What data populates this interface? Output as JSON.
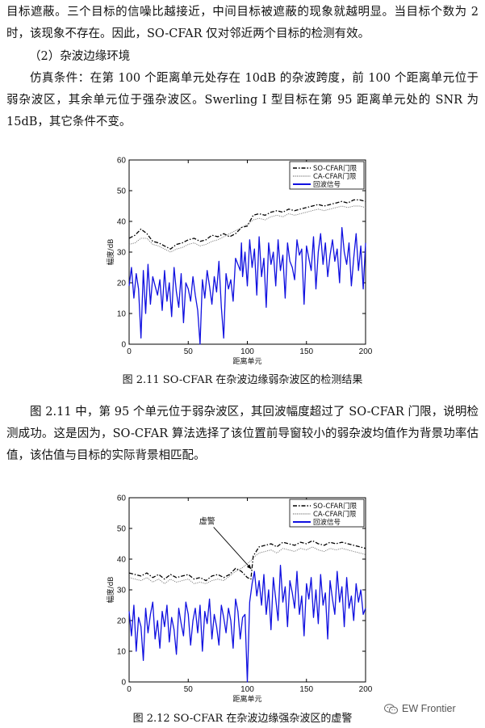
{
  "text": {
    "p1": "目标遮蔽。三个目标的信噪比越接近，中间目标被遮蔽的现象就越明显。当目标个数为 2 时，该现象不存在。因此，SO-CFAR 仅对邻近两个目标的检测有效。",
    "h2": "（2）杂波边缘环境",
    "p2": "仿真条件：在第 100 个距离单元处存在 10dB 的杂波跨度，前 100 个距离单元位于弱杂波区，其余单元位于强杂波区。Swerling I 型目标在第 95 距离单元处的 SNR 为 15dB，其它条件不变。",
    "caption1": "图 2.11 SO-CFAR 在杂波边缘弱杂波区的检测结果",
    "p3": "图 2.11 中，第 95 个单元位于弱杂波区，其回波幅度超过了 SO-CFAR 门限，说明检测成功。这是因为，SO-CFAR 算法选择了该位置前导窗较小的弱杂波均值作为背景功率估值，该估值与目标的实际背景相匹配。",
    "caption2": "图 2.12 SO-CFAR 在杂波边缘强杂波区的虚警",
    "watermark": "EW Frontier",
    "wm_icon": "wechat-icon"
  },
  "chart_data": [
    {
      "type": "line",
      "xlabel": "距离单元",
      "ylabel": "幅度/dB",
      "xlim": [
        0,
        200
      ],
      "ylim": [
        0,
        60
      ],
      "xticks": [
        "0",
        "50",
        "100",
        "150",
        "200"
      ],
      "yticks": [
        "0",
        "10",
        "20",
        "30",
        "40",
        "50",
        "60"
      ],
      "legend_position": "top-right",
      "annotation": "",
      "series": [
        {
          "name": "SO-CFAR门限",
          "color": "#000000",
          "style": "dashdot",
          "x": [
            0,
            5,
            10,
            15,
            20,
            25,
            30,
            35,
            40,
            45,
            50,
            55,
            60,
            65,
            70,
            75,
            80,
            85,
            90,
            95,
            100,
            105,
            110,
            115,
            120,
            125,
            130,
            135,
            140,
            145,
            150,
            155,
            160,
            165,
            170,
            175,
            180,
            185,
            190,
            195,
            200
          ],
          "y": [
            34.5,
            35.5,
            37.5,
            36,
            33.5,
            33,
            32,
            31,
            32.5,
            33,
            34,
            34.5,
            33.5,
            34,
            35.5,
            35,
            36,
            35,
            36,
            38,
            38.5,
            42,
            42.5,
            42,
            43,
            43.5,
            43,
            44,
            43.5,
            44,
            44.5,
            45,
            45.5,
            45,
            45.5,
            46,
            46.5,
            46,
            47,
            47,
            46.5
          ]
        },
        {
          "name": "CA-CFAR门限",
          "color": "#777777",
          "style": "dotted",
          "x": [
            0,
            5,
            10,
            15,
            20,
            25,
            30,
            35,
            40,
            45,
            50,
            55,
            60,
            65,
            70,
            75,
            80,
            85,
            90,
            95,
            100,
            105,
            110,
            115,
            120,
            125,
            130,
            135,
            140,
            145,
            150,
            155,
            160,
            165,
            170,
            175,
            180,
            185,
            190,
            195,
            200
          ],
          "y": [
            32.5,
            33,
            34.5,
            34.5,
            32.5,
            32,
            31,
            30,
            31,
            31.5,
            32.5,
            33,
            32,
            32.5,
            33.5,
            34,
            35,
            36,
            37,
            38,
            39,
            40.5,
            41,
            40.5,
            41.5,
            42,
            41.5,
            42.5,
            42,
            42.5,
            43,
            43.5,
            44,
            43.5,
            44,
            44.5,
            45,
            44.5,
            45,
            45,
            44.5
          ]
        },
        {
          "name": "回波信号",
          "color": "#1010e0",
          "style": "solid",
          "x": [
            0,
            2,
            4,
            6,
            8,
            10,
            12,
            14,
            16,
            18,
            20,
            22,
            24,
            26,
            28,
            30,
            32,
            34,
            36,
            38,
            40,
            42,
            44,
            46,
            48,
            50,
            52,
            54,
            56,
            58,
            60,
            62,
            64,
            66,
            68,
            70,
            72,
            74,
            76,
            78,
            80,
            82,
            84,
            86,
            88,
            90,
            92,
            94,
            95,
            96,
            98,
            100,
            102,
            104,
            106,
            108,
            110,
            112,
            114,
            116,
            118,
            120,
            122,
            124,
            126,
            128,
            130,
            132,
            134,
            136,
            138,
            140,
            142,
            144,
            146,
            148,
            150,
            152,
            154,
            156,
            158,
            160,
            162,
            164,
            166,
            168,
            170,
            172,
            174,
            176,
            178,
            180,
            182,
            184,
            186,
            188,
            190,
            192,
            194,
            196,
            198,
            200
          ],
          "y": [
            19,
            25,
            15,
            23,
            18,
            2,
            24,
            10,
            26,
            13,
            22,
            19,
            16,
            21,
            11,
            24,
            14,
            20,
            9,
            25,
            17,
            12,
            23,
            7,
            20,
            18,
            14,
            22,
            16,
            11,
            0,
            21,
            15,
            24,
            19,
            13,
            22,
            17,
            27,
            12,
            2,
            23,
            18,
            21,
            14,
            28,
            26,
            24,
            33,
            22,
            30,
            19,
            34,
            25,
            31,
            16,
            35,
            22,
            28,
            12,
            33,
            26,
            30,
            19,
            34,
            24,
            29,
            15,
            33,
            27,
            25,
            21,
            34,
            29,
            31,
            13,
            32,
            28,
            24,
            35,
            18,
            30,
            36,
            26,
            33,
            22,
            29,
            34,
            27,
            31,
            20,
            38,
            30,
            26,
            33,
            19,
            28,
            36,
            24,
            32,
            18,
            33
          ]
        }
      ]
    },
    {
      "type": "line",
      "xlabel": "距离单元",
      "ylabel": "幅度/dB",
      "xlim": [
        0,
        200
      ],
      "ylim": [
        0,
        60
      ],
      "xticks": [
        "0",
        "50",
        "100",
        "150",
        "200"
      ],
      "yticks": [
        "0",
        "10",
        "20",
        "30",
        "40",
        "50",
        "60"
      ],
      "legend_position": "top-right",
      "annotation": "虚警",
      "annotation_target": [
        104,
        36
      ],
      "series": [
        {
          "name": "SO-CFAR门限",
          "color": "#000000",
          "style": "dashdot",
          "x": [
            0,
            5,
            10,
            15,
            20,
            25,
            30,
            35,
            40,
            45,
            50,
            55,
            60,
            65,
            70,
            75,
            80,
            85,
            90,
            95,
            100,
            103,
            105,
            110,
            115,
            120,
            125,
            130,
            135,
            140,
            145,
            150,
            155,
            160,
            165,
            170,
            175,
            180,
            185,
            190,
            195,
            200
          ],
          "y": [
            35.5,
            35,
            34.5,
            35.5,
            34,
            35,
            33.5,
            35,
            34,
            34.5,
            35,
            33.5,
            34,
            33,
            34.5,
            35,
            34,
            35,
            37,
            36,
            34,
            33.5,
            41,
            44,
            44.5,
            45,
            44,
            45.5,
            45,
            44.5,
            45.5,
            45,
            46,
            45,
            44.5,
            45.5,
            45,
            45.5,
            45,
            44.5,
            44,
            43.5
          ]
        },
        {
          "name": "CA-CFAR门限",
          "color": "#777777",
          "style": "dotted",
          "x": [
            0,
            5,
            10,
            15,
            20,
            25,
            30,
            35,
            40,
            45,
            50,
            55,
            60,
            65,
            70,
            75,
            80,
            85,
            90,
            95,
            100,
            103,
            105,
            110,
            115,
            120,
            125,
            130,
            135,
            140,
            145,
            150,
            155,
            160,
            165,
            170,
            175,
            180,
            185,
            190,
            195,
            200
          ],
          "y": [
            34,
            33.5,
            33,
            34,
            32.5,
            33.5,
            32,
            33.5,
            32.5,
            33,
            33.5,
            32,
            32.5,
            32,
            33,
            33.5,
            33,
            34.5,
            36,
            37,
            38.5,
            39.5,
            40.5,
            42,
            42.5,
            43,
            42,
            43.5,
            43,
            42.5,
            43.5,
            43,
            44,
            43,
            42.5,
            43.5,
            43,
            43.5,
            43,
            42.5,
            42,
            41.5
          ]
        },
        {
          "name": "回波信号",
          "color": "#1010e0",
          "style": "solid",
          "x": [
            0,
            2,
            4,
            6,
            8,
            10,
            12,
            14,
            16,
            18,
            20,
            22,
            24,
            26,
            28,
            30,
            32,
            34,
            36,
            38,
            40,
            42,
            44,
            46,
            48,
            50,
            52,
            54,
            56,
            58,
            60,
            62,
            64,
            66,
            68,
            70,
            72,
            74,
            76,
            78,
            80,
            82,
            84,
            86,
            88,
            90,
            92,
            94,
            96,
            98,
            100,
            102,
            104,
            106,
            108,
            110,
            112,
            114,
            116,
            118,
            120,
            122,
            124,
            126,
            128,
            130,
            132,
            134,
            136,
            138,
            140,
            142,
            144,
            146,
            148,
            150,
            152,
            154,
            156,
            158,
            160,
            162,
            164,
            166,
            168,
            170,
            172,
            174,
            176,
            178,
            180,
            182,
            184,
            186,
            188,
            190,
            192,
            194,
            196,
            198,
            200
          ],
          "y": [
            23,
            15,
            25,
            10,
            21,
            18,
            7,
            24,
            16,
            22,
            26,
            14,
            20,
            11,
            23,
            18,
            25,
            13,
            21,
            17,
            9,
            24,
            19,
            15,
            26,
            22,
            12,
            20,
            24,
            16,
            25,
            10,
            23,
            19,
            27,
            14,
            22,
            18,
            12,
            25,
            21,
            16,
            24,
            20,
            11,
            27,
            23,
            14,
            21,
            22,
            0,
            26,
            32,
            36,
            28,
            33,
            25,
            35,
            22,
            30,
            17,
            34,
            27,
            20,
            38,
            26,
            31,
            18,
            33,
            29,
            24,
            36,
            22,
            28,
            15,
            32,
            27,
            34,
            21,
            30,
            19,
            35,
            25,
            29,
            14,
            33,
            27,
            22,
            36,
            26,
            31,
            18,
            34,
            24,
            28,
            20,
            32,
            26,
            30,
            22,
            24
          ]
        }
      ]
    }
  ]
}
